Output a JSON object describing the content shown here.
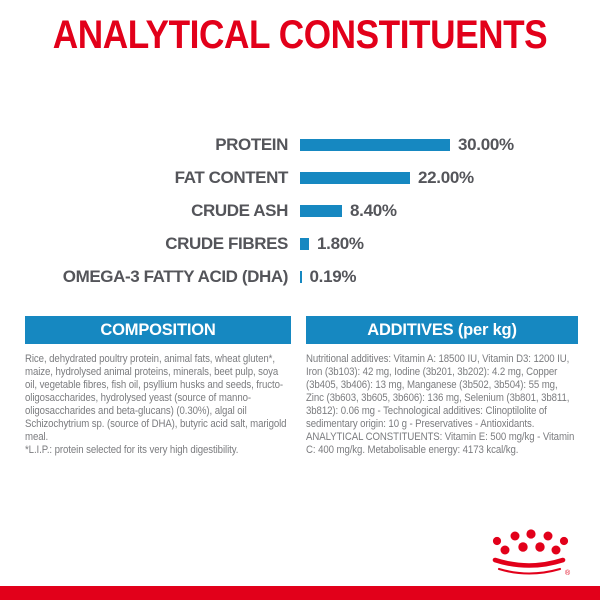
{
  "title": {
    "text": "ANALYTICAL CONSTITUENTS"
  },
  "colors": {
    "brand_red": "#e2001a",
    "brand_blue": "#1688c1",
    "label_gray": "#54555a",
    "body_gray": "#7b7c7f"
  },
  "chart_data": {
    "type": "bar",
    "orientation": "horizontal",
    "title": "ANALYTICAL CONSTITUENTS",
    "categories": [
      "PROTEIN",
      "FAT CONTENT",
      "CRUDE ASH",
      "CRUDE FIBRES",
      "OMEGA-3 FATTY ACID (DHA)"
    ],
    "values": [
      30.0,
      22.0,
      8.4,
      1.8,
      0.19
    ],
    "value_labels": [
      "30.00%",
      "22.00%",
      "8.40%",
      "1.80%",
      "0.19%"
    ],
    "unit": "%",
    "xlim": [
      0,
      30
    ],
    "bar_color": "#1688c1",
    "grid": false,
    "legend": false
  },
  "composition": {
    "header": "COMPOSITION",
    "paragraphs": [
      "Rice, dehydrated poultry protein, animal fats, wheat gluten*, maize, hydrolysed animal proteins, minerals, beet pulp, soya oil, vegetable fibres, fish oil, psyllium husks and seeds, fructo-oligosaccharides, hydrolysed yeast (source of manno-oligosaccharides and beta-glucans) (0.30%), algal oil Schizochytrium sp. (source of DHA), butyric acid salt, marigold meal.",
      "*L.I.P.: protein selected for its very high digestibility."
    ]
  },
  "additives": {
    "header": "ADDITIVES (per kg)",
    "paragraphs": [
      "Nutritional additives: Vitamin A: 18500 IU, Vitamin D3: 1200 IU, Iron (3b103): 42 mg, Iodine (3b201, 3b202): 4.2 mg, Copper (3b405, 3b406): 13 mg, Manganese (3b502, 3b504): 55 mg, Zinc (3b603, 3b605, 3b606): 136 mg, Selenium (3b801, 3b811, 3b812): 0.06 mg - Technological additives: Clinoptilolite of sedimentary origin: 10 g - Preservatives - Antioxidants.",
      "ANALYTICAL CONSTITUENTS: Vitamin E: 500 mg/kg - Vitamin C: 400 mg/kg. Metabolisable energy: 4173 kcal/kg."
    ]
  },
  "footer": {
    "logo": "royal-canin-crown",
    "registered_mark": "®"
  }
}
